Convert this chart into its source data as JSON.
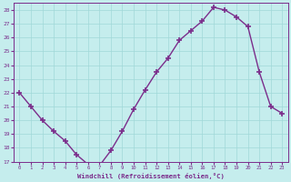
{
  "x": [
    0,
    1,
    2,
    3,
    4,
    5,
    6,
    7,
    8,
    9,
    10,
    11,
    12,
    13,
    14,
    15,
    16,
    17,
    18,
    19,
    20,
    21,
    22,
    23
  ],
  "y": [
    22.0,
    21.0,
    20.0,
    19.2,
    18.5,
    17.5,
    16.8,
    16.7,
    17.8,
    19.2,
    20.8,
    22.2,
    23.5,
    24.5,
    25.8,
    26.5,
    27.2,
    28.2,
    28.0,
    27.5,
    26.8,
    23.5,
    21.0,
    20.5
  ],
  "line_color": "#7b2d8b",
  "marker": "+",
  "marker_size": 5,
  "marker_lw": 1.2,
  "line_width": 1.0,
  "bg_color": "#c5eded",
  "grid_color": "#a0d8d8",
  "xlabel": "Windchill (Refroidissement éolien,°C)",
  "xlabel_color": "#7b2d8b",
  "tick_color": "#7b2d8b",
  "ylim": [
    17,
    28.5
  ],
  "yticks": [
    17,
    18,
    19,
    20,
    21,
    22,
    23,
    24,
    25,
    26,
    27,
    28
  ],
  "xticks": [
    0,
    1,
    2,
    3,
    4,
    5,
    6,
    7,
    8,
    9,
    10,
    11,
    12,
    13,
    14,
    15,
    16,
    17,
    18,
    19,
    20,
    21,
    22,
    23
  ]
}
